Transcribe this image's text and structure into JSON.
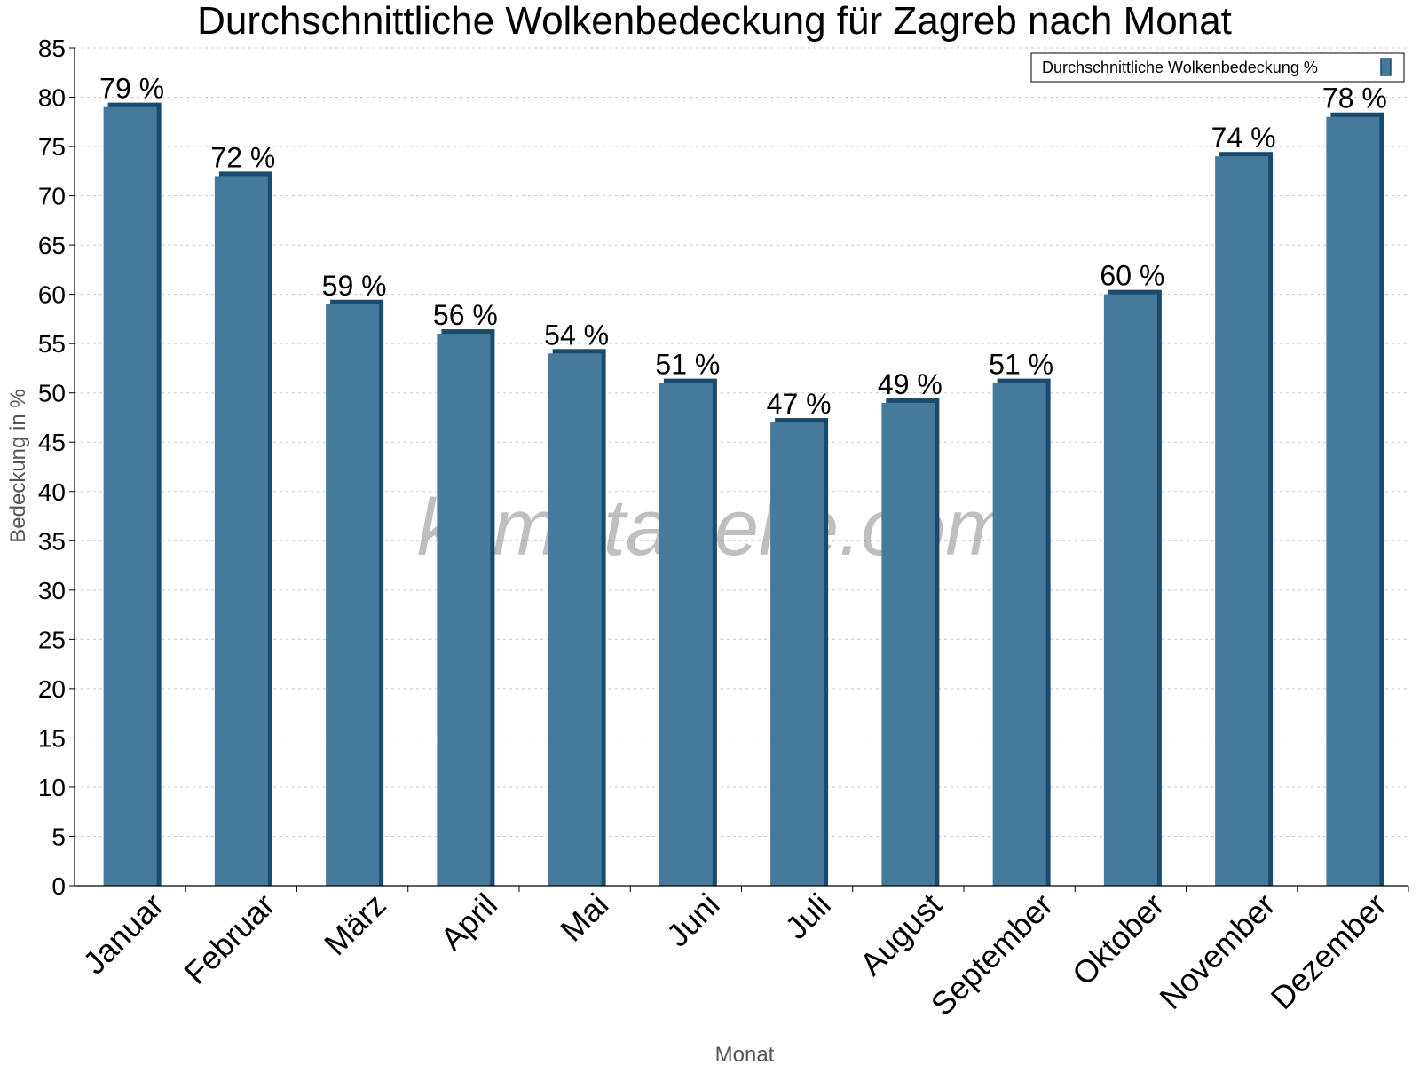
{
  "chart_data": {
    "type": "bar",
    "title": "Durchschnittliche Wolkenbedeckung für Zagreb nach Monat",
    "xlabel": "Monat",
    "ylabel": "Bedeckung in %",
    "ylim": [
      0,
      85
    ],
    "ytick_step": 5,
    "grid": true,
    "legend_placement": "top-right",
    "value_suffix": " %",
    "categories": [
      "Januar",
      "Februar",
      "März",
      "April",
      "Mai",
      "Juni",
      "Juli",
      "August",
      "September",
      "Oktober",
      "November",
      "Dezember"
    ],
    "series": [
      {
        "name": "Durchschnittliche Wolkenbedeckung %",
        "values": [
          79,
          72,
          59,
          56,
          54,
          51,
          47,
          49,
          51,
          60,
          74,
          78
        ],
        "color": "#467a9c",
        "edge_color": "#1a4a6c"
      }
    ],
    "watermark": "klimatabelle.com"
  }
}
